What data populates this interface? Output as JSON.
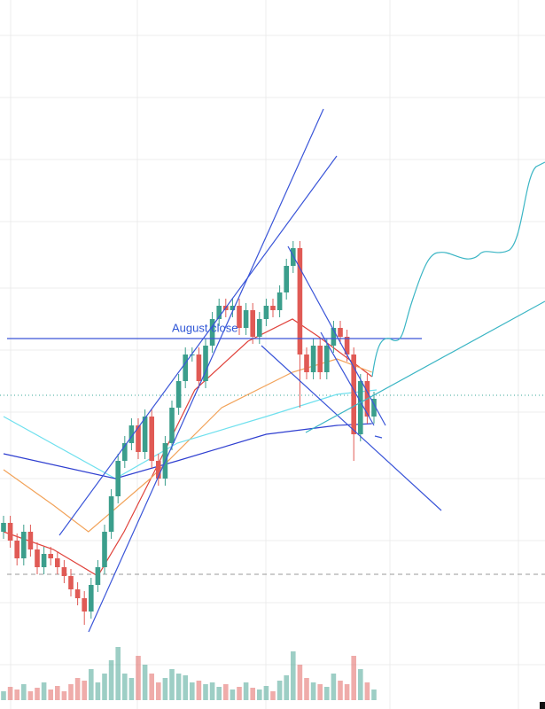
{
  "chart_data": {
    "type": "candlestick",
    "annotation": "August close",
    "ylim": [
      0,
      800
    ],
    "up_color": "#3b9e8c",
    "down_color": "#e05a55",
    "open": [
      200,
      210,
      190,
      170,
      200,
      180,
      160,
      175,
      170,
      160,
      150,
      135,
      125,
      110,
      140,
      160,
      200,
      240,
      280,
      300,
      320,
      290,
      330,
      280,
      260,
      300,
      340,
      370,
      400,
      400,
      370,
      410,
      440,
      455,
      450,
      455,
      430,
      450,
      420,
      440,
      455,
      450,
      470,
      500,
      520,
      400,
      380,
      410,
      380,
      410,
      430,
      420,
      400,
      310,
      370,
      330
    ],
    "high": [
      218,
      218,
      198,
      208,
      208,
      188,
      183,
      183,
      178,
      168,
      158,
      143,
      133,
      148,
      168,
      208,
      248,
      288,
      308,
      328,
      328,
      338,
      338,
      288,
      308,
      348,
      378,
      408,
      408,
      408,
      418,
      448,
      463,
      463,
      463,
      463,
      458,
      458,
      448,
      463,
      463,
      478,
      508,
      528,
      528,
      408,
      418,
      418,
      418,
      438,
      438,
      428,
      408,
      378,
      378,
      358
    ],
    "low": [
      192,
      182,
      162,
      162,
      172,
      152,
      152,
      162,
      152,
      142,
      127,
      117,
      95,
      102,
      132,
      152,
      192,
      232,
      272,
      292,
      282,
      282,
      272,
      252,
      252,
      292,
      332,
      362,
      392,
      362,
      362,
      402,
      432,
      442,
      442,
      422,
      422,
      412,
      412,
      432,
      442,
      442,
      462,
      492,
      340,
      372,
      372,
      372,
      372,
      402,
      412,
      392,
      280,
      302,
      322,
      322
    ],
    "close": [
      210,
      190,
      170,
      200,
      180,
      160,
      175,
      170,
      160,
      150,
      135,
      125,
      110,
      140,
      160,
      200,
      240,
      280,
      300,
      320,
      290,
      330,
      280,
      260,
      300,
      340,
      370,
      400,
      400,
      370,
      410,
      440,
      455,
      450,
      455,
      430,
      450,
      420,
      440,
      455,
      450,
      470,
      500,
      520,
      400,
      380,
      410,
      380,
      410,
      430,
      420,
      400,
      310,
      370,
      330,
      350
    ],
    "volume": [
      10,
      15,
      12,
      18,
      10,
      14,
      20,
      12,
      16,
      10,
      18,
      25,
      22,
      35,
      20,
      30,
      45,
      60,
      30,
      25,
      50,
      40,
      30,
      20,
      25,
      35,
      30,
      28,
      20,
      22,
      18,
      20,
      15,
      18,
      12,
      15,
      20,
      14,
      12,
      16,
      10,
      22,
      28,
      55,
      40,
      25,
      20,
      18,
      15,
      30,
      22,
      18,
      50,
      35,
      20,
      12
    ],
    "series": [
      {
        "color": "#2f3fd0",
        "x": [
          0,
          16.6,
          25.8,
          39,
          49.5,
          54.7
        ],
        "values": [
          288,
          260,
          280,
          310,
          320,
          322
        ]
      },
      {
        "color": "#6fe0ee",
        "x": [
          0,
          16.6,
          25.8,
          39,
          49.5,
          55.4
        ],
        "values": [
          330,
          260,
          300,
          330,
          355,
          360
        ]
      },
      {
        "color": "#f2a35a",
        "x": [
          0,
          7.4,
          12.6,
          21.8,
          32.4,
          42.9,
          49.5,
          54.7
        ],
        "values": [
          270,
          230,
          200,
          260,
          340,
          380,
          395,
          380
        ]
      },
      {
        "color": "#e0423b",
        "x": [
          0,
          7.4,
          14,
          17.9,
          23.2,
          28.4,
          36.3,
          42.9,
          46.8,
          52.1,
          54.7
        ],
        "values": [
          200,
          180,
          150,
          200,
          280,
          360,
          415,
          440,
          420,
          390,
          375
        ]
      }
    ]
  }
}
